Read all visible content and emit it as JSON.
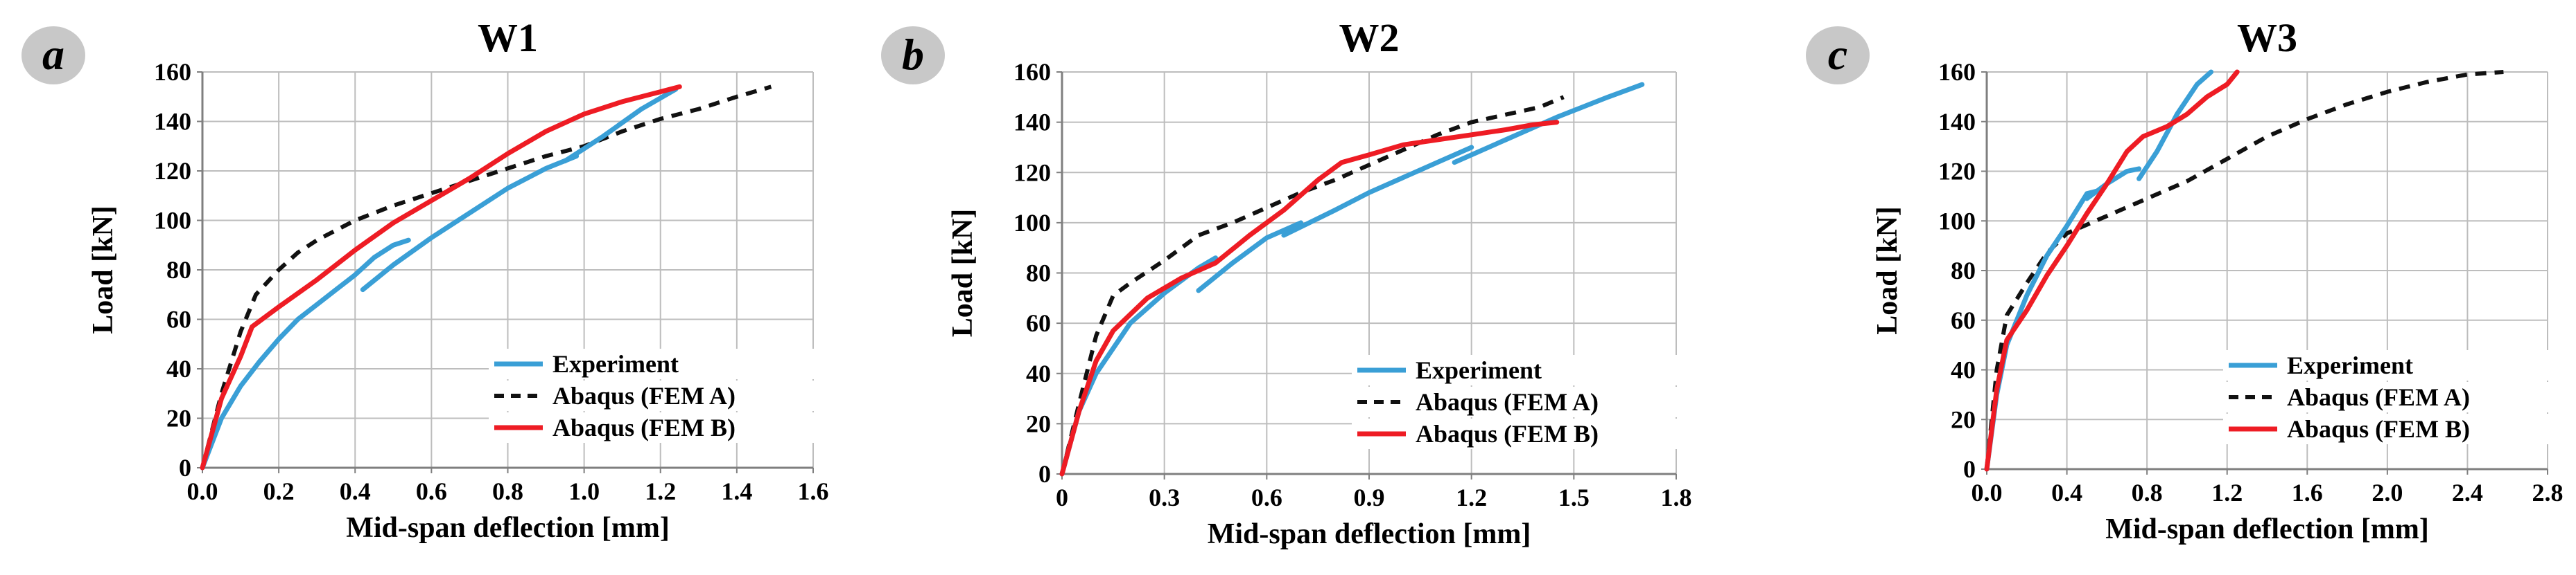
{
  "colors": {
    "experiment": "#3a9fd6",
    "fem_a": "#111111",
    "fem_b": "#ee1c24",
    "grid": "#bdbdbd",
    "axis": "#7f7f7f",
    "badge": "#c8c8c8"
  },
  "chart_data": [
    {
      "type": "line",
      "panel_label": "a",
      "title": "W1",
      "xlabel": "Mid-span deflection [mm]",
      "ylabel": "Load [kN]",
      "xlim": [
        0,
        1.6
      ],
      "ylim": [
        0,
        160
      ],
      "xticks": [
        "0.0",
        "0.2",
        "0.4",
        "0.6",
        "0.8",
        "1.0",
        "1.2",
        "1.4",
        "1.6"
      ],
      "yticks": [
        "0",
        "20",
        "40",
        "60",
        "80",
        "100",
        "120",
        "140",
        "160"
      ],
      "grid": true,
      "legend_position": "lower-right",
      "series": [
        {
          "name": "Experiment",
          "style": "solid",
          "segments": [
            [
              [
                0,
                0
              ],
              [
                0.05,
                20
              ],
              [
                0.1,
                33
              ],
              [
                0.15,
                43
              ],
              [
                0.2,
                52
              ],
              [
                0.25,
                60
              ],
              [
                0.3,
                66
              ],
              [
                0.35,
                72
              ],
              [
                0.4,
                78
              ],
              [
                0.45,
                85
              ],
              [
                0.5,
                90
              ],
              [
                0.54,
                92
              ]
            ],
            [
              [
                0.42,
                72
              ],
              [
                0.5,
                82
              ],
              [
                0.6,
                93
              ],
              [
                0.7,
                103
              ],
              [
                0.8,
                113
              ],
              [
                0.9,
                121
              ],
              [
                0.98,
                126
              ]
            ],
            [
              [
                0.95,
                124
              ],
              [
                1.05,
                134
              ],
              [
                1.15,
                145
              ],
              [
                1.24,
                153
              ]
            ]
          ]
        },
        {
          "name": "Abaqus (FEM A)",
          "style": "dashed",
          "points": [
            [
              0,
              0
            ],
            [
              0.05,
              30
            ],
            [
              0.1,
              55
            ],
            [
              0.14,
              70
            ],
            [
              0.2,
              80
            ],
            [
              0.25,
              87
            ],
            [
              0.3,
              92
            ],
            [
              0.4,
              100
            ],
            [
              0.5,
              106
            ],
            [
              0.6,
              111
            ],
            [
              0.7,
              116
            ],
            [
              0.8,
              121
            ],
            [
              0.9,
              126
            ],
            [
              1.0,
              130
            ],
            [
              1.1,
              136
            ],
            [
              1.2,
              141
            ],
            [
              1.3,
              145
            ],
            [
              1.4,
              150
            ],
            [
              1.49,
              154
            ]
          ]
        },
        {
          "name": "Abaqus (FEM B)",
          "style": "solid",
          "points": [
            [
              0,
              0
            ],
            [
              0.05,
              28
            ],
            [
              0.1,
              45
            ],
            [
              0.13,
              57
            ],
            [
              0.2,
              65
            ],
            [
              0.3,
              76
            ],
            [
              0.4,
              88
            ],
            [
              0.5,
              99
            ],
            [
              0.6,
              108
            ],
            [
              0.7,
              117
            ],
            [
              0.8,
              127
            ],
            [
              0.9,
              136
            ],
            [
              1.0,
              143
            ],
            [
              1.1,
              148
            ],
            [
              1.2,
              152
            ],
            [
              1.25,
              154
            ]
          ]
        }
      ]
    },
    {
      "type": "line",
      "panel_label": "b",
      "title": "W2",
      "xlabel": "Mid-span deflection [mm]",
      "ylabel": "Load [kN]",
      "xlim": [
        0,
        1.8
      ],
      "ylim": [
        0,
        160
      ],
      "xticks": [
        "0",
        "0.3",
        "0.6",
        "0.9",
        "1.2",
        "1.5",
        "1.8"
      ],
      "yticks": [
        "0",
        "20",
        "40",
        "60",
        "80",
        "100",
        "120",
        "140",
        "160"
      ],
      "grid": true,
      "legend_position": "lower-right",
      "series": [
        {
          "name": "Experiment",
          "style": "solid",
          "segments": [
            [
              [
                0,
                0
              ],
              [
                0.05,
                25
              ],
              [
                0.1,
                40
              ],
              [
                0.15,
                50
              ],
              [
                0.2,
                60
              ],
              [
                0.3,
                72
              ],
              [
                0.4,
                82
              ],
              [
                0.45,
                86
              ]
            ],
            [
              [
                0.4,
                73
              ],
              [
                0.5,
                84
              ],
              [
                0.6,
                94
              ],
              [
                0.7,
                100
              ]
            ],
            [
              [
                0.65,
                95
              ],
              [
                0.8,
                105
              ],
              [
                0.9,
                112
              ],
              [
                1.0,
                118
              ],
              [
                1.1,
                124
              ],
              [
                1.2,
                130
              ]
            ],
            [
              [
                1.15,
                124
              ],
              [
                1.3,
                133
              ],
              [
                1.45,
                142
              ],
              [
                1.6,
                150
              ],
              [
                1.7,
                155
              ]
            ]
          ]
        },
        {
          "name": "Abaqus (FEM A)",
          "style": "dashed",
          "points": [
            [
              0,
              0
            ],
            [
              0.05,
              28
            ],
            [
              0.1,
              55
            ],
            [
              0.15,
              71
            ],
            [
              0.2,
              76
            ],
            [
              0.3,
              85
            ],
            [
              0.4,
              95
            ],
            [
              0.5,
              100
            ],
            [
              0.6,
              106
            ],
            [
              0.7,
              112
            ],
            [
              0.8,
              117
            ],
            [
              0.9,
              123
            ],
            [
              1.0,
              129
            ],
            [
              1.1,
              135
            ],
            [
              1.2,
              140
            ],
            [
              1.3,
              143
            ],
            [
              1.4,
              146
            ],
            [
              1.47,
              150
            ]
          ]
        },
        {
          "name": "Abaqus (FEM B)",
          "style": "solid",
          "points": [
            [
              0,
              0
            ],
            [
              0.05,
              25
            ],
            [
              0.1,
              45
            ],
            [
              0.15,
              57
            ],
            [
              0.25,
              70
            ],
            [
              0.35,
              78
            ],
            [
              0.45,
              84
            ],
            [
              0.55,
              95
            ],
            [
              0.65,
              105
            ],
            [
              0.75,
              117
            ],
            [
              0.82,
              124
            ],
            [
              0.9,
              127
            ],
            [
              1.0,
              131
            ],
            [
              1.1,
              133
            ],
            [
              1.2,
              135
            ],
            [
              1.3,
              137
            ],
            [
              1.38,
              139
            ],
            [
              1.45,
              140
            ]
          ]
        }
      ]
    },
    {
      "type": "line",
      "panel_label": "c",
      "title": "W3",
      "xlabel": "Mid-span deflection [mm]",
      "ylabel": "Load [kN]",
      "xlim": [
        0,
        2.8
      ],
      "ylim": [
        0,
        160
      ],
      "xticks": [
        "0.0",
        "0.4",
        "0.8",
        "1.2",
        "1.6",
        "2.0",
        "2.4",
        "2.8"
      ],
      "yticks": [
        "0",
        "20",
        "40",
        "60",
        "80",
        "100",
        "120",
        "140",
        "160"
      ],
      "grid": true,
      "legend_position": "lower-right",
      "series": [
        {
          "name": "Experiment",
          "style": "solid",
          "segments": [
            [
              [
                0,
                0
              ],
              [
                0.05,
                30
              ],
              [
                0.1,
                50
              ],
              [
                0.2,
                70
              ],
              [
                0.3,
                86
              ],
              [
                0.4,
                98
              ],
              [
                0.5,
                111
              ],
              [
                0.55,
                112
              ]
            ],
            [
              [
                0.5,
                109
              ],
              [
                0.6,
                115
              ],
              [
                0.7,
                120
              ],
              [
                0.76,
                121
              ]
            ],
            [
              [
                0.76,
                117
              ],
              [
                0.85,
                128
              ],
              [
                0.95,
                143
              ],
              [
                1.05,
                155
              ],
              [
                1.12,
                160
              ]
            ]
          ]
        },
        {
          "name": "Abaqus (FEM A)",
          "style": "dashed",
          "points": [
            [
              0,
              0
            ],
            [
              0.05,
              40
            ],
            [
              0.1,
              62
            ],
            [
              0.2,
              75
            ],
            [
              0.3,
              87
            ],
            [
              0.4,
              95
            ],
            [
              0.6,
              102
            ],
            [
              0.8,
              109
            ],
            [
              1.0,
              116
            ],
            [
              1.2,
              125
            ],
            [
              1.4,
              134
            ],
            [
              1.6,
              141
            ],
            [
              1.8,
              147
            ],
            [
              2.0,
              152
            ],
            [
              2.2,
              156
            ],
            [
              2.4,
              159
            ],
            [
              2.58,
              160
            ]
          ]
        },
        {
          "name": "Abaqus (FEM B)",
          "style": "solid",
          "points": [
            [
              0,
              0
            ],
            [
              0.05,
              32
            ],
            [
              0.1,
              52
            ],
            [
              0.2,
              64
            ],
            [
              0.3,
              78
            ],
            [
              0.4,
              90
            ],
            [
              0.5,
              103
            ],
            [
              0.6,
              115
            ],
            [
              0.7,
              128
            ],
            [
              0.78,
              134
            ],
            [
              0.9,
              138
            ],
            [
              1.0,
              143
            ],
            [
              1.1,
              150
            ],
            [
              1.2,
              155
            ],
            [
              1.25,
              160
            ]
          ]
        }
      ]
    }
  ]
}
